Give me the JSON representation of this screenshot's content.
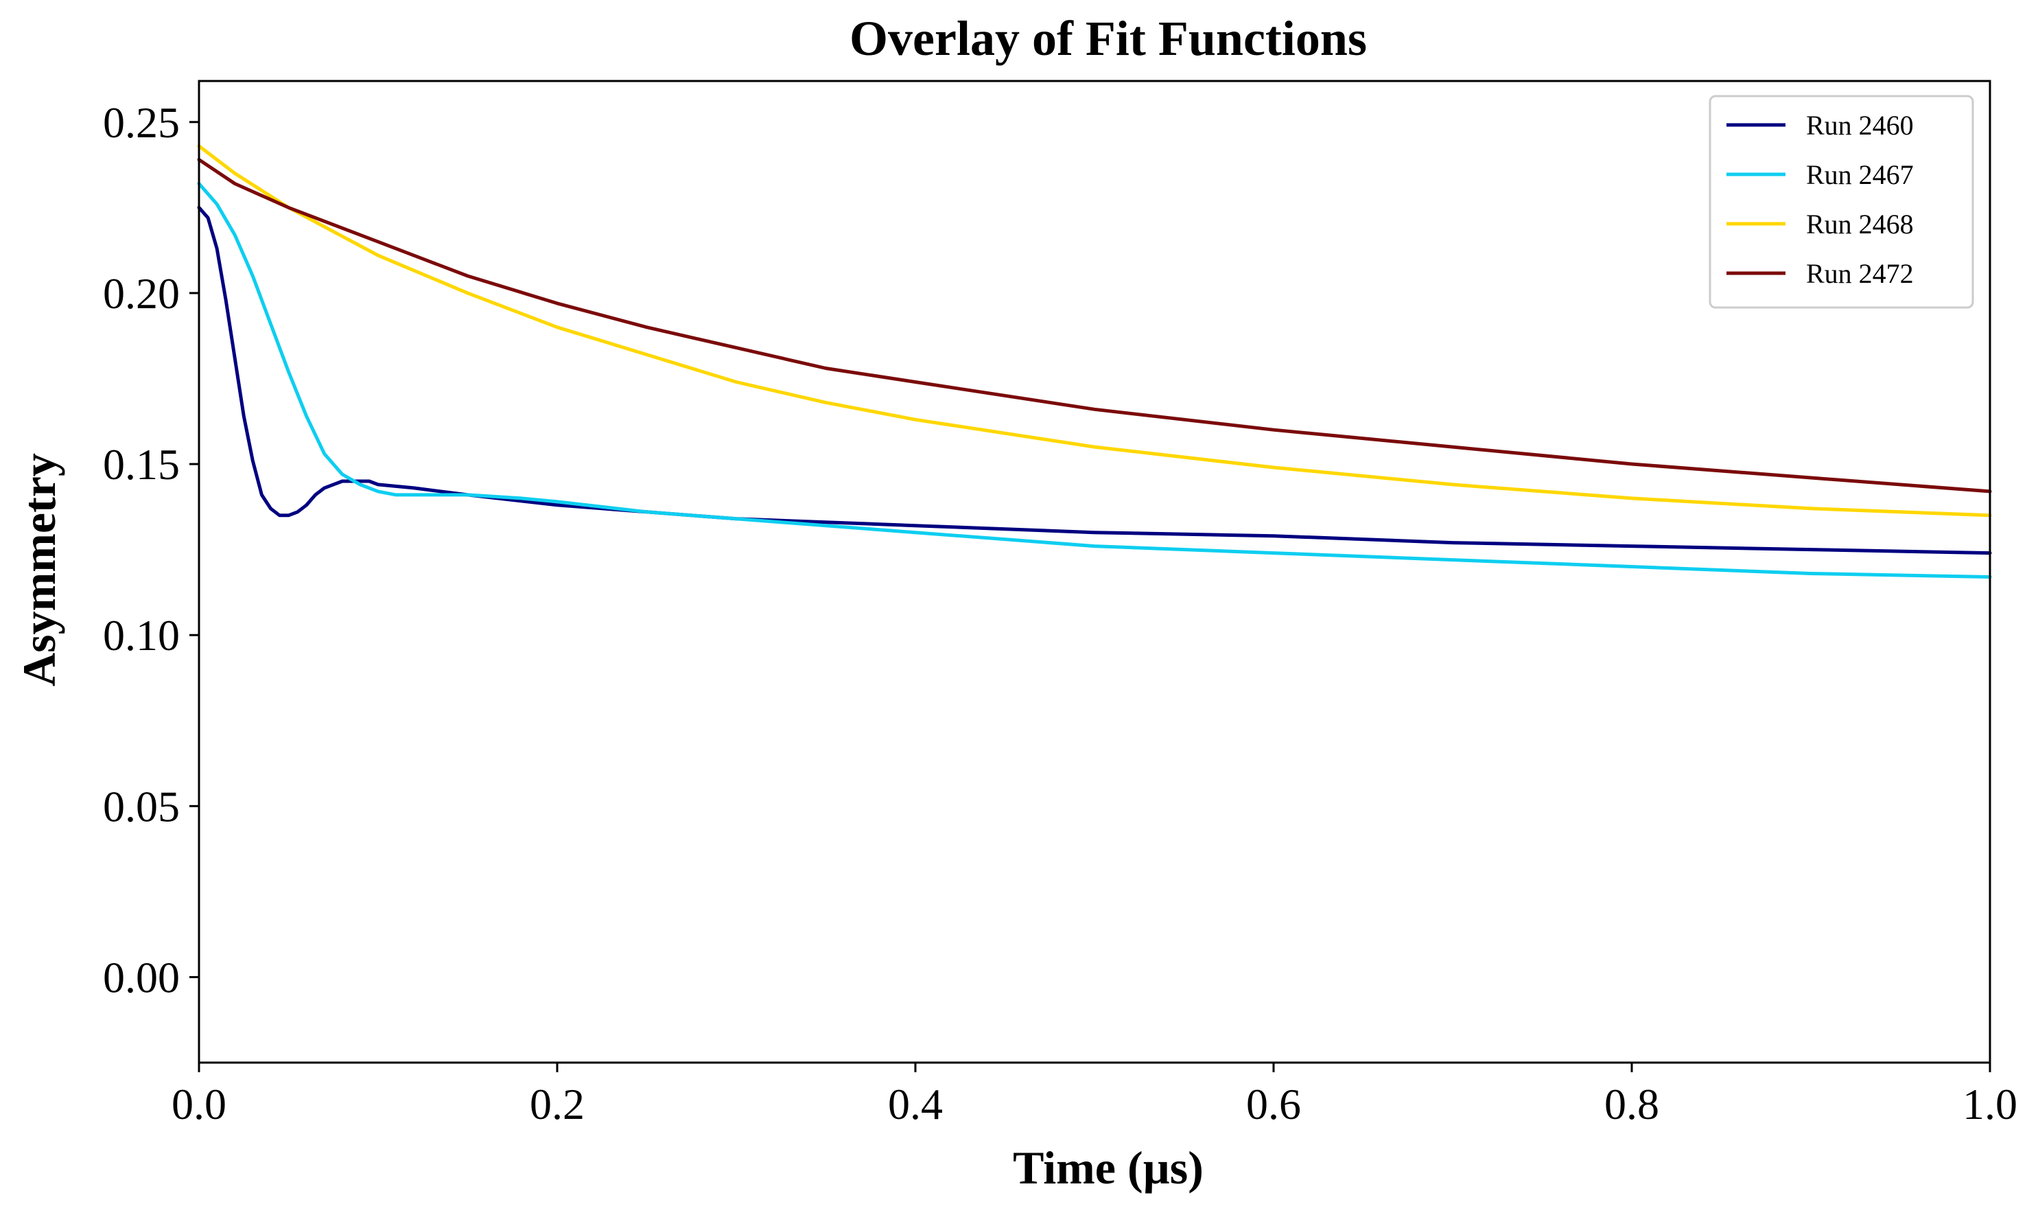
{
  "chart_data": {
    "type": "line",
    "title": "Overlay of Fit Functions",
    "xlabel": "Time (µs)",
    "ylabel": "Asymmetry",
    "xlim": [
      0.0,
      1.0
    ],
    "ylim": [
      -0.025,
      0.262
    ],
    "xticks": [
      0.0,
      0.2,
      0.4,
      0.6,
      0.8,
      1.0
    ],
    "xtick_labels": [
      "0.0",
      "0.2",
      "0.4",
      "0.6",
      "0.8",
      "1.0"
    ],
    "yticks": [
      0.0,
      0.05,
      0.1,
      0.15,
      0.2,
      0.25
    ],
    "ytick_labels": [
      "0.00",
      "0.05",
      "0.10",
      "0.15",
      "0.20",
      "0.25"
    ],
    "grid": false,
    "legend_position": "top-right",
    "series": [
      {
        "name": "Run 2460",
        "color": "#000080",
        "x": [
          0.0,
          0.005,
          0.01,
          0.015,
          0.02,
          0.025,
          0.03,
          0.035,
          0.04,
          0.045,
          0.05,
          0.055,
          0.06,
          0.065,
          0.07,
          0.075,
          0.08,
          0.085,
          0.09,
          0.095,
          0.1,
          0.12,
          0.15,
          0.2,
          0.25,
          0.3,
          0.4,
          0.5,
          0.6,
          0.7,
          0.8,
          0.9,
          1.0
        ],
        "y": [
          0.225,
          0.222,
          0.213,
          0.198,
          0.181,
          0.164,
          0.151,
          0.141,
          0.137,
          0.135,
          0.135,
          0.136,
          0.138,
          0.141,
          0.143,
          0.144,
          0.145,
          0.145,
          0.145,
          0.145,
          0.144,
          0.143,
          0.141,
          0.138,
          0.136,
          0.134,
          0.132,
          0.13,
          0.129,
          0.127,
          0.126,
          0.125,
          0.124
        ]
      },
      {
        "name": "Run 2467",
        "color": "#0ECEF0",
        "x": [
          0.0,
          0.01,
          0.02,
          0.03,
          0.04,
          0.05,
          0.06,
          0.07,
          0.08,
          0.09,
          0.1,
          0.11,
          0.12,
          0.13,
          0.15,
          0.18,
          0.2,
          0.25,
          0.3,
          0.4,
          0.5,
          0.6,
          0.7,
          0.8,
          0.9,
          1.0
        ],
        "y": [
          0.232,
          0.226,
          0.217,
          0.205,
          0.191,
          0.177,
          0.164,
          0.153,
          0.147,
          0.144,
          0.142,
          0.141,
          0.141,
          0.141,
          0.141,
          0.14,
          0.139,
          0.136,
          0.134,
          0.13,
          0.126,
          0.124,
          0.122,
          0.12,
          0.118,
          0.117
        ]
      },
      {
        "name": "Run 2468",
        "color": "#FFD700",
        "x": [
          0.0,
          0.02,
          0.05,
          0.1,
          0.15,
          0.2,
          0.25,
          0.3,
          0.35,
          0.4,
          0.5,
          0.6,
          0.7,
          0.8,
          0.9,
          1.0
        ],
        "y": [
          0.243,
          0.235,
          0.225,
          0.211,
          0.2,
          0.19,
          0.182,
          0.174,
          0.168,
          0.163,
          0.155,
          0.149,
          0.144,
          0.14,
          0.137,
          0.135
        ]
      },
      {
        "name": "Run 2472",
        "color": "#7B0A0A",
        "x": [
          0.0,
          0.02,
          0.05,
          0.1,
          0.15,
          0.2,
          0.25,
          0.3,
          0.35,
          0.4,
          0.5,
          0.6,
          0.7,
          0.8,
          0.9,
          1.0
        ],
        "y": [
          0.239,
          0.232,
          0.225,
          0.215,
          0.205,
          0.197,
          0.19,
          0.184,
          0.178,
          0.174,
          0.166,
          0.16,
          0.155,
          0.15,
          0.146,
          0.142
        ]
      }
    ]
  }
}
